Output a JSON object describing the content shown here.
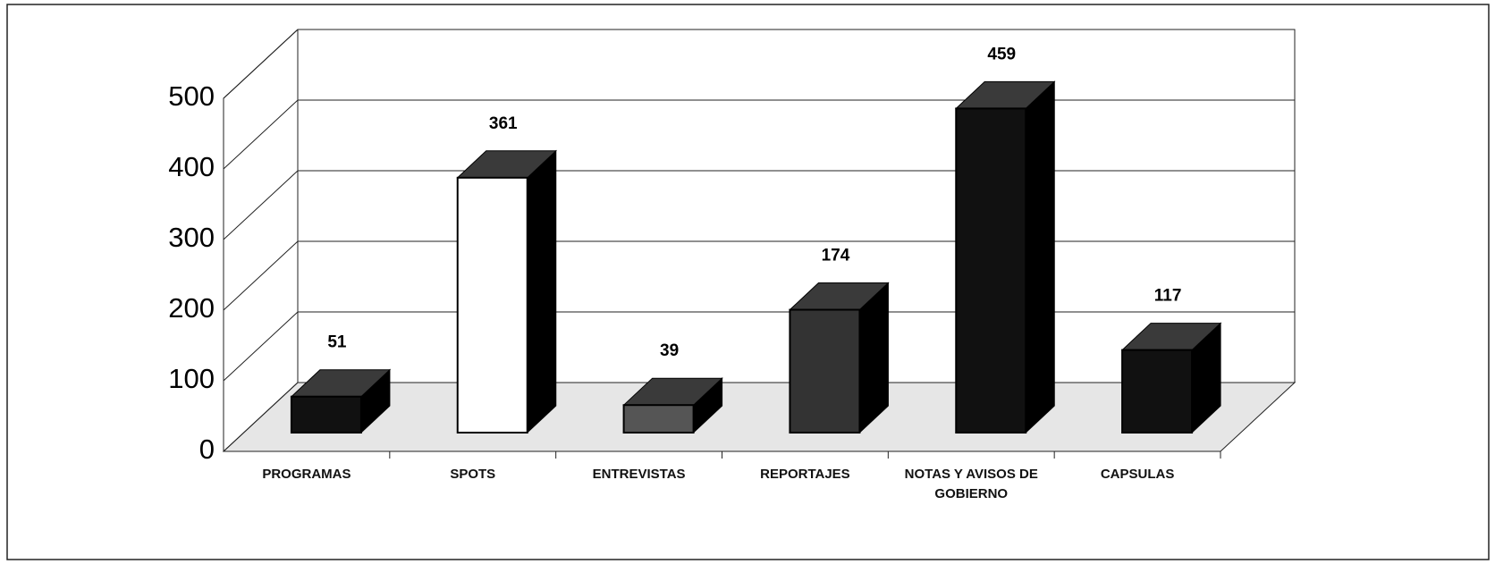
{
  "chart_data": {
    "type": "bar3d",
    "categories": [
      "PROGRAMAS",
      "SPOTS",
      "ENTREVISTAS",
      "REPORTAJES",
      "NOTAS Y AVISOS DE GOBIERNO",
      "CAPSULAS"
    ],
    "values": [
      51,
      361,
      39,
      174,
      459,
      117
    ],
    "colors": [
      "#111111",
      "#ffffff",
      "#555555",
      "#333333",
      "#111111",
      "#111111"
    ],
    "ylim": [
      0,
      500
    ],
    "yticks": [
      0,
      100,
      200,
      300,
      400,
      500
    ],
    "grid": true
  }
}
